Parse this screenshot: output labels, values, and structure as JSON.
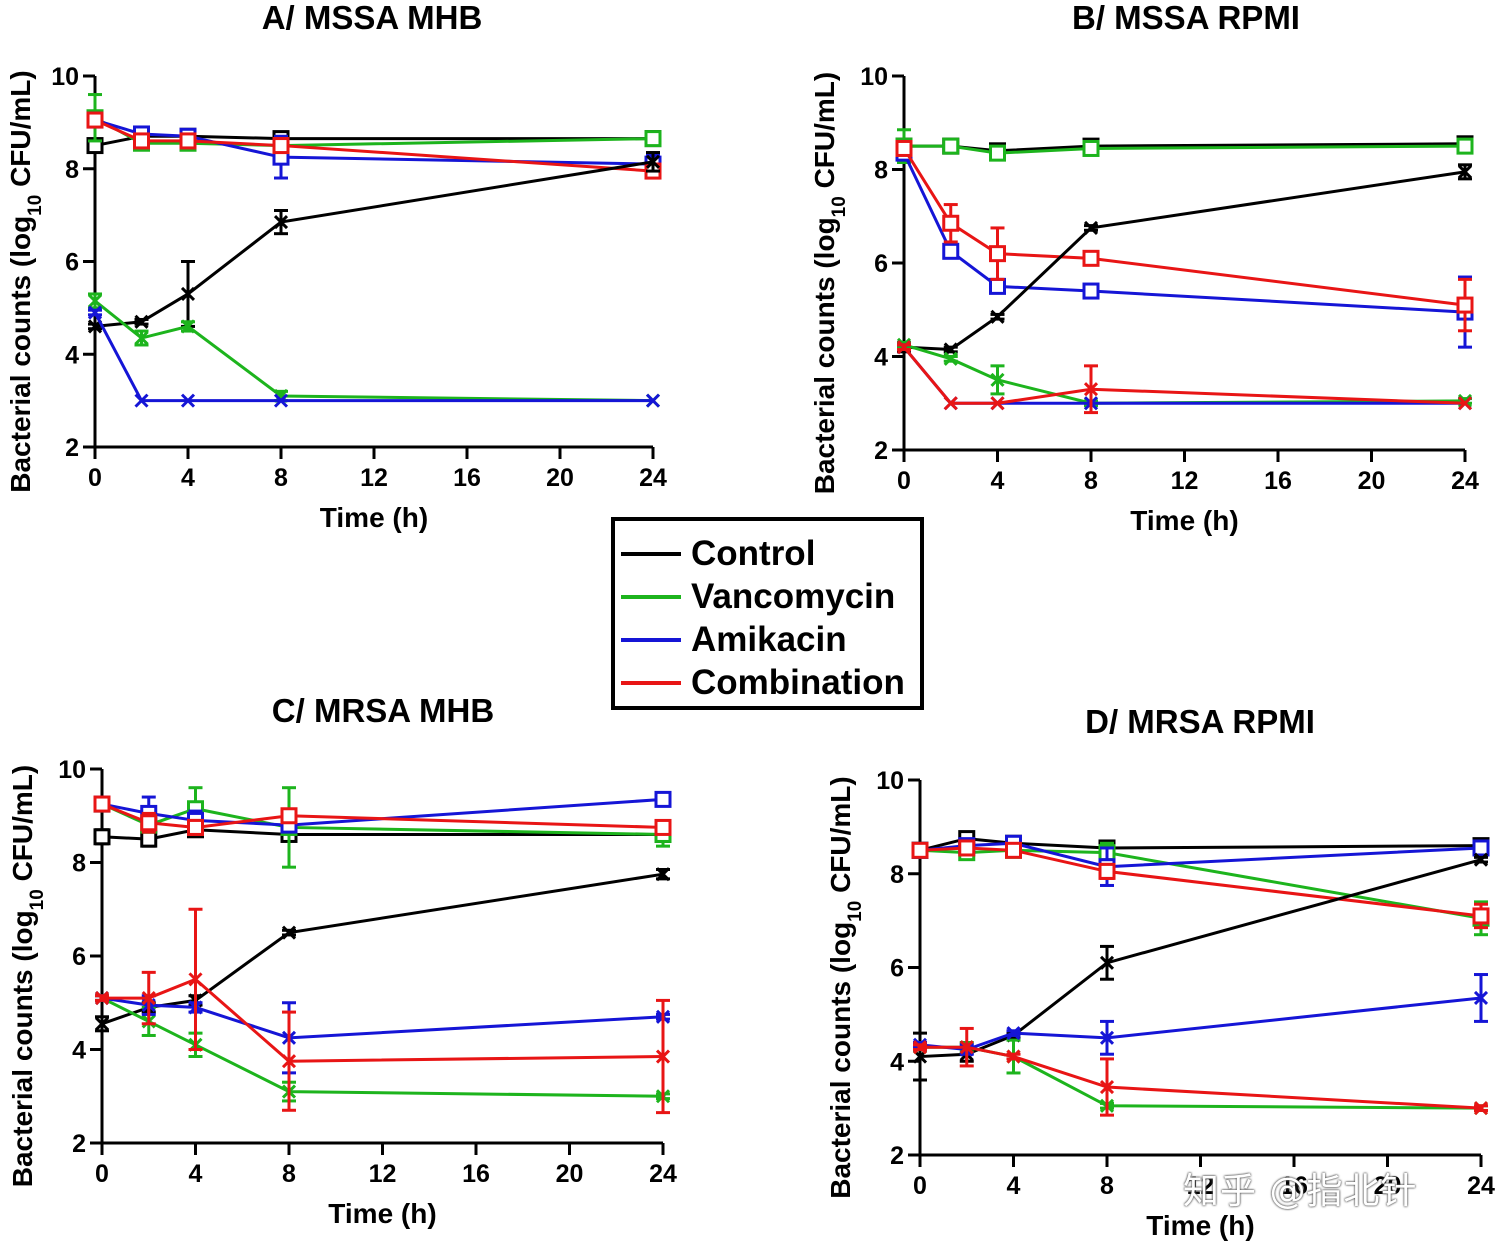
{
  "legend": {
    "items": [
      {
        "label": "Control",
        "color": "#000000"
      },
      {
        "label": "Vancomycin",
        "color": "#1db41d"
      },
      {
        "label": "Amikacin",
        "color": "#1515d6"
      },
      {
        "label": "Combination",
        "color": "#e81515"
      }
    ]
  },
  "watermark": "知乎 @指北针",
  "chart_data": [
    {
      "type": "line",
      "title": "A/ MSSA MHB",
      "xlabel": "Time (h)",
      "ylabel": "Bacterial counts (log10 CFU/mL)",
      "xlim": [
        0,
        24
      ],
      "ylim": [
        2,
        10
      ],
      "xticks": [
        0,
        4,
        8,
        12,
        16,
        20,
        24
      ],
      "yticks": [
        2,
        4,
        6,
        8,
        10
      ],
      "x": [
        0,
        2,
        4,
        8,
        24
      ],
      "series": [
        {
          "name": "Control",
          "color": "#000000",
          "marker": "square",
          "values": [
            8.5,
            8.7,
            8.7,
            8.65,
            8.65
          ],
          "err": [
            0.1,
            0.05,
            0.05,
            0.05,
            0.05
          ]
        },
        {
          "name": "Vancomycin",
          "color": "#1db41d",
          "marker": "square",
          "values": [
            9.1,
            8.55,
            8.55,
            8.5,
            8.65
          ],
          "err": [
            0.5,
            0.1,
            0.1,
            0.1,
            0.1
          ]
        },
        {
          "name": "Amikacin",
          "color": "#1515d6",
          "marker": "square",
          "values": [
            9.05,
            8.75,
            8.7,
            8.25,
            8.1
          ],
          "err": [
            0.1,
            0.05,
            0.05,
            0.45,
            0.2
          ]
        },
        {
          "name": "Combination",
          "color": "#e81515",
          "marker": "square",
          "values": [
            9.05,
            8.6,
            8.6,
            8.5,
            7.95
          ],
          "err": [
            0.1,
            0.05,
            0.05,
            0.15,
            0.15
          ]
        },
        {
          "name": "Control",
          "color": "#000000",
          "marker": "x",
          "values": [
            4.6,
            4.7,
            5.3,
            6.85,
            8.15
          ],
          "err": [
            0.05,
            0.05,
            0.7,
            0.25,
            0.2
          ]
        },
        {
          "name": "Vancomycin",
          "color": "#1db41d",
          "marker": "x",
          "values": [
            5.15,
            4.35,
            4.6,
            3.1,
            3.0
          ],
          "err": [
            0.15,
            0.15,
            0.1,
            0.1,
            0.0
          ]
        },
        {
          "name": "Amikacin",
          "color": "#1515d6",
          "marker": "x",
          "values": [
            4.9,
            3.0,
            3.0,
            3.0,
            3.0
          ],
          "err": [
            0.05,
            0,
            0,
            0,
            0
          ]
        }
      ]
    },
    {
      "type": "line",
      "title": "B/ MSSA RPMI",
      "xlabel": "Time (h)",
      "ylabel": "Bacterial counts (log10 CFU/mL)",
      "xlim": [
        0,
        24
      ],
      "ylim": [
        2,
        10
      ],
      "xticks": [
        0,
        4,
        8,
        12,
        16,
        20,
        24
      ],
      "yticks": [
        2,
        4,
        6,
        8,
        10
      ],
      "x": [
        0,
        2,
        4,
        8,
        24
      ],
      "series": [
        {
          "name": "Control",
          "color": "#000000",
          "marker": "square",
          "values": [
            8.5,
            8.5,
            8.4,
            8.5,
            8.55
          ],
          "err": [
            0.05,
            0.05,
            0.05,
            0.1,
            0.05
          ]
        },
        {
          "name": "Vancomycin",
          "color": "#1db41d",
          "marker": "square",
          "values": [
            8.5,
            8.5,
            8.35,
            8.45,
            8.5
          ],
          "err": [
            0.35,
            0.05,
            0.1,
            0.05,
            0.05
          ]
        },
        {
          "name": "Amikacin",
          "color": "#1515d6",
          "marker": "square",
          "values": [
            8.35,
            6.25,
            5.5,
            5.4,
            4.95
          ],
          "err": [
            0.1,
            0.1,
            0.05,
            0.05,
            0.75
          ]
        },
        {
          "name": "Combination",
          "color": "#e81515",
          "marker": "square",
          "values": [
            8.45,
            6.85,
            6.2,
            6.1,
            5.1
          ],
          "err": [
            0.1,
            0.4,
            0.55,
            0.05,
            0.55
          ]
        },
        {
          "name": "Control",
          "color": "#000000",
          "marker": "x",
          "values": [
            4.2,
            4.15,
            4.85,
            6.75,
            7.95
          ],
          "err": [
            0.1,
            0.05,
            0.05,
            0.05,
            0.15
          ]
        },
        {
          "name": "Vancomycin",
          "color": "#1db41d",
          "marker": "x",
          "values": [
            4.25,
            3.95,
            3.5,
            3.0,
            3.05
          ],
          "err": [
            0.05,
            0.05,
            0.3,
            0.05,
            0.05
          ]
        },
        {
          "name": "Amikacin",
          "color": "#1515d6",
          "marker": "x",
          "values": [
            4.2,
            3.0,
            3.0,
            3.0,
            3.0
          ],
          "err": [
            0.05,
            0,
            0,
            0,
            0
          ]
        },
        {
          "name": "Combination",
          "color": "#e81515",
          "marker": "x",
          "values": [
            4.2,
            3.0,
            3.0,
            3.3,
            3.0
          ],
          "err": [
            0.05,
            0,
            0,
            0.5,
            0
          ]
        }
      ]
    },
    {
      "type": "line",
      "title": "C/ MRSA MHB",
      "xlabel": "Time (h)",
      "ylabel": "Bacterial counts (log10 CFU/mL)",
      "xlim": [
        0,
        24
      ],
      "ylim": [
        2,
        10
      ],
      "xticks": [
        0,
        4,
        8,
        12,
        16,
        20,
        24
      ],
      "yticks": [
        2,
        4,
        6,
        8,
        10
      ],
      "x": [
        0,
        2,
        4,
        8,
        24
      ],
      "series": [
        {
          "name": "Control",
          "color": "#000000",
          "marker": "square",
          "values": [
            8.55,
            8.5,
            8.7,
            8.6,
            8.6
          ],
          "err": [
            0.15,
            0.15,
            0.05,
            0.05,
            0.05
          ]
        },
        {
          "name": "Vancomycin",
          "color": "#1db41d",
          "marker": "square",
          "values": [
            9.25,
            8.8,
            9.15,
            8.75,
            8.6
          ],
          "err": [
            0.05,
            0.15,
            0.45,
            0.85,
            0.25
          ]
        },
        {
          "name": "Amikacin",
          "color": "#1515d6",
          "marker": "square",
          "values": [
            9.25,
            9.05,
            8.9,
            8.8,
            9.35
          ],
          "err": [
            0.05,
            0.35,
            0.2,
            0.1,
            0.05
          ]
        },
        {
          "name": "Combination",
          "color": "#e81515",
          "marker": "square",
          "values": [
            9.25,
            8.85,
            8.75,
            9.0,
            8.75
          ],
          "err": [
            0.05,
            0.2,
            0.15,
            0.1,
            0.1
          ]
        },
        {
          "name": "Control",
          "color": "#000000",
          "marker": "x",
          "values": [
            4.55,
            4.9,
            5.05,
            6.5,
            7.75
          ],
          "err": [
            0.15,
            0.1,
            0.1,
            0.05,
            0.1
          ]
        },
        {
          "name": "Vancomycin",
          "color": "#1db41d",
          "marker": "x",
          "values": [
            5.1,
            4.6,
            4.1,
            3.1,
            3.0
          ],
          "err": [
            0.05,
            0.3,
            0.25,
            0.2,
            0.05
          ]
        },
        {
          "name": "Amikacin",
          "color": "#1515d6",
          "marker": "x",
          "values": [
            5.1,
            4.95,
            4.9,
            4.25,
            4.7
          ],
          "err": [
            0.05,
            0.2,
            0.1,
            0.75,
            0.05
          ]
        },
        {
          "name": "Combination",
          "color": "#e81515",
          "marker": "x",
          "values": [
            5.1,
            5.1,
            5.5,
            3.75,
            3.85
          ],
          "err": [
            0.05,
            0.55,
            1.5,
            1.05,
            1.2
          ]
        }
      ]
    },
    {
      "type": "line",
      "title": "D/ MRSA RPMI",
      "xlabel": "Time (h)",
      "ylabel": "Bacterial counts (log10 CFU/mL)",
      "xlim": [
        0,
        24
      ],
      "ylim": [
        2,
        10
      ],
      "xticks": [
        0,
        4,
        8,
        12,
        16,
        20,
        24
      ],
      "yticks": [
        2,
        4,
        6,
        8,
        10
      ],
      "x": [
        0,
        2,
        4,
        8,
        24
      ],
      "series": [
        {
          "name": "Control",
          "color": "#000000",
          "marker": "square",
          "values": [
            8.5,
            8.75,
            8.65,
            8.55,
            8.6
          ],
          "err": [
            0.05,
            0.05,
            0.05,
            0.05,
            0.05
          ]
        },
        {
          "name": "Vancomycin",
          "color": "#1db41d",
          "marker": "square",
          "values": [
            8.5,
            8.45,
            8.5,
            8.45,
            7.05
          ],
          "err": [
            0.05,
            0.1,
            0.1,
            0.2,
            0.35
          ]
        },
        {
          "name": "Amikacin",
          "color": "#1515d6",
          "marker": "square",
          "values": [
            8.5,
            8.6,
            8.65,
            8.15,
            8.55
          ],
          "err": [
            0.05,
            0.1,
            0.05,
            0.4,
            0.05
          ]
        },
        {
          "name": "Combination",
          "color": "#e81515",
          "marker": "square",
          "values": [
            8.5,
            8.55,
            8.5,
            8.05,
            7.1
          ],
          "err": [
            0.05,
            0.05,
            0.1,
            0.15,
            0.25
          ]
        },
        {
          "name": "Control",
          "color": "#000000",
          "marker": "x",
          "values": [
            4.1,
            4.15,
            4.55,
            6.1,
            8.3
          ],
          "err": [
            0.5,
            0.15,
            0.05,
            0.35,
            0.05
          ]
        },
        {
          "name": "Vancomycin",
          "color": "#1db41d",
          "marker": "x",
          "values": [
            4.3,
            4.3,
            4.1,
            3.05,
            3.0
          ],
          "err": [
            0.05,
            0.1,
            0.35,
            0.05,
            0.05
          ]
        },
        {
          "name": "Amikacin",
          "color": "#1515d6",
          "marker": "x",
          "values": [
            4.35,
            4.25,
            4.6,
            4.5,
            5.35
          ],
          "err": [
            0.05,
            0.1,
            0.05,
            0.35,
            0.5
          ]
        },
        {
          "name": "Combination",
          "color": "#e81515",
          "marker": "x",
          "values": [
            4.3,
            4.3,
            4.1,
            3.45,
            3.0
          ],
          "err": [
            0.05,
            0.4,
            0.05,
            0.6,
            0.05
          ]
        }
      ]
    }
  ]
}
